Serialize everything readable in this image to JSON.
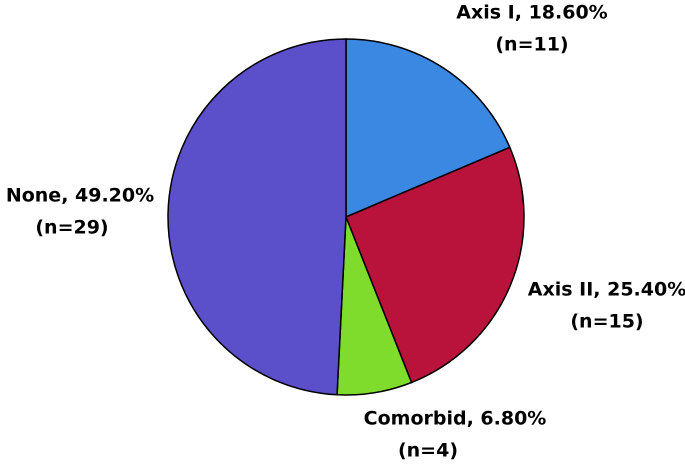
{
  "chart_data": {
    "type": "pie",
    "categories": [
      "Axis I",
      "Axis II",
      "Comorbid",
      "None"
    ],
    "values": [
      18.6,
      25.4,
      6.8,
      49.2
    ],
    "labels": [
      "Axis I, 18.60%",
      "Axis II, 25.40%",
      "Comorbid, 6.80%",
      "None, 49.20%"
    ],
    "n_labels": [
      "(n=11)",
      "(n=15)",
      "(n=4)",
      "(n=29)"
    ],
    "colors": [
      "#3b88e2",
      "#b9133c",
      "#7fdc2c",
      "#5b4fca"
    ]
  }
}
